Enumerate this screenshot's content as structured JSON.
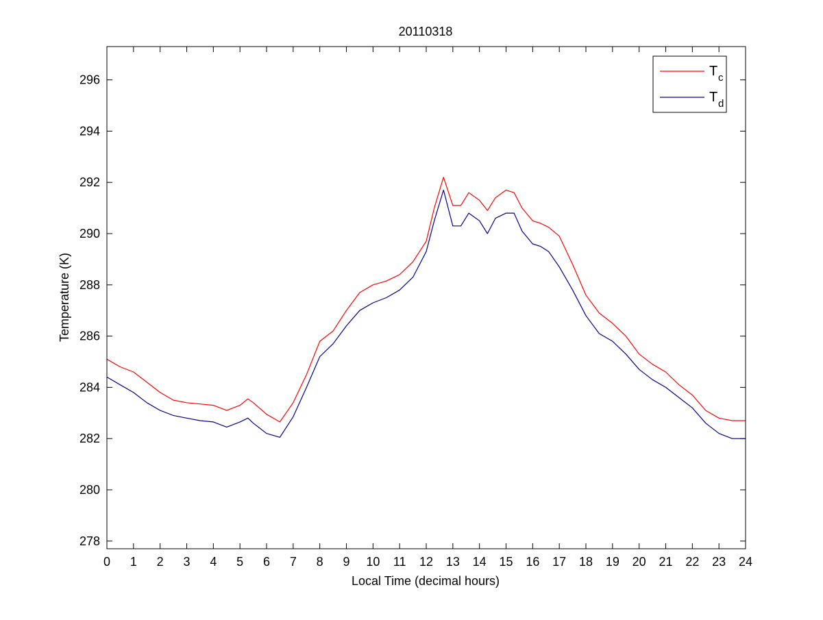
{
  "chart_data": {
    "type": "line",
    "title": "20110318",
    "xlabel": "Local Time (decimal hours)",
    "ylabel": "Temperature (K)",
    "xlim": [
      0,
      24
    ],
    "ylim": [
      277.7,
      297.3
    ],
    "xticks": [
      0,
      1,
      2,
      3,
      4,
      5,
      6,
      7,
      8,
      9,
      10,
      11,
      12,
      13,
      14,
      15,
      16,
      17,
      18,
      19,
      20,
      21,
      22,
      23,
      24
    ],
    "yticks": [
      278,
      280,
      282,
      284,
      286,
      288,
      290,
      292,
      294,
      296
    ],
    "grid": false,
    "legend_position": "top-right",
    "series": [
      {
        "name": "T",
        "name_subscript": "c",
        "color": "#ff0000",
        "x": [
          0,
          0.5,
          1,
          1.5,
          2,
          2.5,
          3,
          3.5,
          4,
          4.5,
          5,
          5.3,
          5.5,
          6,
          6.5,
          7,
          7.5,
          8,
          8.5,
          9,
          9.5,
          10,
          10.5,
          11,
          11.5,
          12,
          12.3,
          12.65,
          13,
          13.3,
          13.6,
          14,
          14.3,
          14.6,
          15,
          15.3,
          15.6,
          16,
          16.3,
          16.6,
          17,
          17.5,
          18,
          18.5,
          19,
          19.5,
          20,
          20.5,
          21,
          21.5,
          22,
          22.5,
          23,
          23.5,
          24
        ],
        "y": [
          285.1,
          284.8,
          284.6,
          284.2,
          283.8,
          283.5,
          283.4,
          283.35,
          283.3,
          283.1,
          283.3,
          283.55,
          283.4,
          282.95,
          282.65,
          283.4,
          284.5,
          285.8,
          286.2,
          287.0,
          287.7,
          288.0,
          288.15,
          288.4,
          288.9,
          289.7,
          291.0,
          292.2,
          291.1,
          291.1,
          291.6,
          291.3,
          290.9,
          291.4,
          291.7,
          291.6,
          291.0,
          290.5,
          290.4,
          290.25,
          289.9,
          288.8,
          287.6,
          286.9,
          286.5,
          286.0,
          285.3,
          284.9,
          284.6,
          284.1,
          283.7,
          283.1,
          282.8,
          282.7,
          282.7
        ]
      },
      {
        "name": "T",
        "name_subscript": "d",
        "color": "#00008b",
        "x": [
          0,
          0.5,
          1,
          1.5,
          2,
          2.5,
          3,
          3.5,
          4,
          4.5,
          5,
          5.3,
          5.5,
          6,
          6.5,
          7,
          7.5,
          8,
          8.5,
          9,
          9.5,
          10,
          10.5,
          11,
          11.5,
          12,
          12.3,
          12.65,
          13,
          13.3,
          13.6,
          14,
          14.3,
          14.6,
          15,
          15.3,
          15.6,
          16,
          16.3,
          16.6,
          17,
          17.5,
          18,
          18.5,
          19,
          19.5,
          20,
          20.5,
          21,
          21.5,
          22,
          22.5,
          23,
          23.5,
          24
        ],
        "y": [
          284.4,
          284.1,
          283.8,
          283.4,
          283.1,
          282.9,
          282.8,
          282.7,
          282.65,
          282.45,
          282.65,
          282.8,
          282.6,
          282.2,
          282.05,
          282.85,
          284.0,
          285.2,
          285.7,
          286.4,
          287.0,
          287.3,
          287.5,
          287.8,
          288.3,
          289.3,
          290.5,
          291.7,
          290.3,
          290.3,
          290.8,
          290.5,
          290.0,
          290.6,
          290.8,
          290.8,
          290.1,
          289.6,
          289.5,
          289.3,
          288.7,
          287.8,
          286.8,
          286.1,
          285.8,
          285.3,
          284.7,
          284.3,
          284.0,
          283.6,
          283.2,
          282.6,
          282.2,
          282.0,
          282.0
        ]
      }
    ]
  }
}
